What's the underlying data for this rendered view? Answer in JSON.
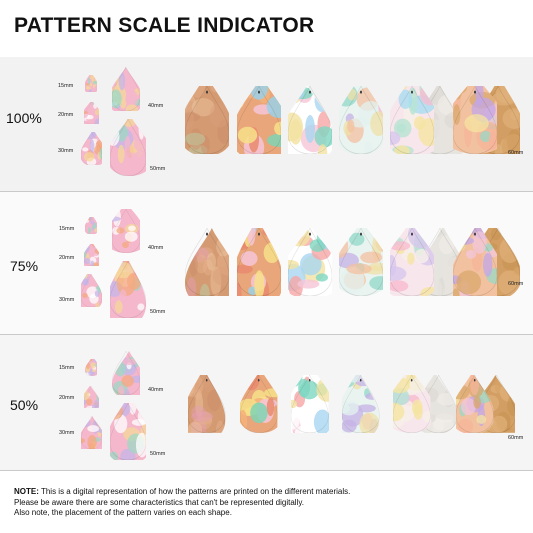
{
  "title": "PATTERN SCALE INDICATOR",
  "columns": [
    {
      "line1": "Transparent Print",
      "line2": "3mm Plywood"
    },
    {
      "line1": "Bright Print",
      "line2": "3mm Plywood"
    },
    {
      "line1": "3mm",
      "line2": "White Acrylic"
    },
    {
      "line1": "3mm",
      "line2": "Clear Acrylic"
    },
    {
      "line1": "1.6-1.8mm",
      "line2": "Leather"
    },
    {
      "line1": "2mm",
      "line2": "Double Sided Cork"
    }
  ],
  "rows": [
    {
      "scale": "100%",
      "s15": "15mm",
      "s20": "20mm",
      "s30": "30mm",
      "s40": "40mm",
      "s50": "50mm",
      "s60": "60mm"
    },
    {
      "scale": "75%",
      "s15": "15mm",
      "s20": "20mm",
      "s30": "30mm",
      "s40": "40mm",
      "s50": "50mm",
      "s60": "60mm"
    },
    {
      "scale": "50%",
      "s15": "15mm",
      "s20": "20mm",
      "s30": "30mm",
      "s40": "40mm",
      "s50": "50mm",
      "s60": "60mm"
    }
  ],
  "note": {
    "label": "NOTE:",
    "line1": " This is a digital representation of how the patterns are printed on the different materials.",
    "line2": "Please be aware there are some characteristics that can't be represented digitally.",
    "line3": "Also note, the placement of the pattern varies on each shape."
  }
}
